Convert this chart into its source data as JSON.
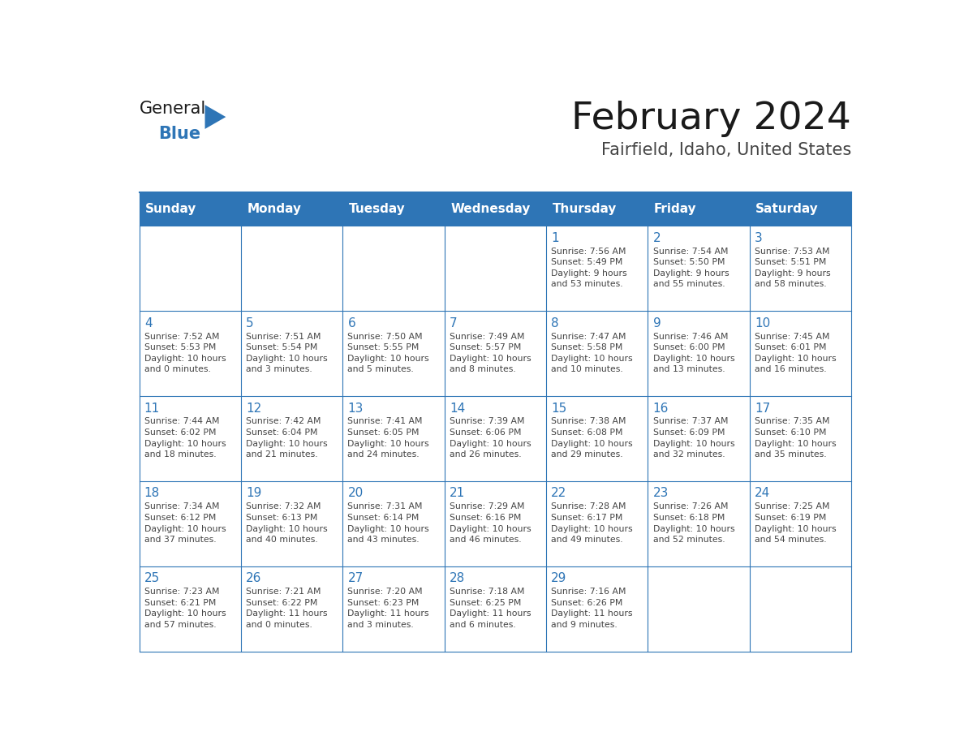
{
  "title": "February 2024",
  "subtitle": "Fairfield, Idaho, United States",
  "days_of_week": [
    "Sunday",
    "Monday",
    "Tuesday",
    "Wednesday",
    "Thursday",
    "Friday",
    "Saturday"
  ],
  "header_bg": "#2E75B6",
  "header_text": "#FFFFFF",
  "cell_bg": "#FFFFFF",
  "border_color": "#2E75B6",
  "title_color": "#1a1a1a",
  "subtitle_color": "#444444",
  "day_num_color": "#2E75B6",
  "cell_text_color": "#444444",
  "logo_general_color": "#1a1a1a",
  "logo_blue_color": "#2E75B6",
  "weeks": [
    [
      {
        "day": null,
        "info": null
      },
      {
        "day": null,
        "info": null
      },
      {
        "day": null,
        "info": null
      },
      {
        "day": null,
        "info": null
      },
      {
        "day": "1",
        "info": "Sunrise: 7:56 AM\nSunset: 5:49 PM\nDaylight: 9 hours\nand 53 minutes."
      },
      {
        "day": "2",
        "info": "Sunrise: 7:54 AM\nSunset: 5:50 PM\nDaylight: 9 hours\nand 55 minutes."
      },
      {
        "day": "3",
        "info": "Sunrise: 7:53 AM\nSunset: 5:51 PM\nDaylight: 9 hours\nand 58 minutes."
      }
    ],
    [
      {
        "day": "4",
        "info": "Sunrise: 7:52 AM\nSunset: 5:53 PM\nDaylight: 10 hours\nand 0 minutes."
      },
      {
        "day": "5",
        "info": "Sunrise: 7:51 AM\nSunset: 5:54 PM\nDaylight: 10 hours\nand 3 minutes."
      },
      {
        "day": "6",
        "info": "Sunrise: 7:50 AM\nSunset: 5:55 PM\nDaylight: 10 hours\nand 5 minutes."
      },
      {
        "day": "7",
        "info": "Sunrise: 7:49 AM\nSunset: 5:57 PM\nDaylight: 10 hours\nand 8 minutes."
      },
      {
        "day": "8",
        "info": "Sunrise: 7:47 AM\nSunset: 5:58 PM\nDaylight: 10 hours\nand 10 minutes."
      },
      {
        "day": "9",
        "info": "Sunrise: 7:46 AM\nSunset: 6:00 PM\nDaylight: 10 hours\nand 13 minutes."
      },
      {
        "day": "10",
        "info": "Sunrise: 7:45 AM\nSunset: 6:01 PM\nDaylight: 10 hours\nand 16 minutes."
      }
    ],
    [
      {
        "day": "11",
        "info": "Sunrise: 7:44 AM\nSunset: 6:02 PM\nDaylight: 10 hours\nand 18 minutes."
      },
      {
        "day": "12",
        "info": "Sunrise: 7:42 AM\nSunset: 6:04 PM\nDaylight: 10 hours\nand 21 minutes."
      },
      {
        "day": "13",
        "info": "Sunrise: 7:41 AM\nSunset: 6:05 PM\nDaylight: 10 hours\nand 24 minutes."
      },
      {
        "day": "14",
        "info": "Sunrise: 7:39 AM\nSunset: 6:06 PM\nDaylight: 10 hours\nand 26 minutes."
      },
      {
        "day": "15",
        "info": "Sunrise: 7:38 AM\nSunset: 6:08 PM\nDaylight: 10 hours\nand 29 minutes."
      },
      {
        "day": "16",
        "info": "Sunrise: 7:37 AM\nSunset: 6:09 PM\nDaylight: 10 hours\nand 32 minutes."
      },
      {
        "day": "17",
        "info": "Sunrise: 7:35 AM\nSunset: 6:10 PM\nDaylight: 10 hours\nand 35 minutes."
      }
    ],
    [
      {
        "day": "18",
        "info": "Sunrise: 7:34 AM\nSunset: 6:12 PM\nDaylight: 10 hours\nand 37 minutes."
      },
      {
        "day": "19",
        "info": "Sunrise: 7:32 AM\nSunset: 6:13 PM\nDaylight: 10 hours\nand 40 minutes."
      },
      {
        "day": "20",
        "info": "Sunrise: 7:31 AM\nSunset: 6:14 PM\nDaylight: 10 hours\nand 43 minutes."
      },
      {
        "day": "21",
        "info": "Sunrise: 7:29 AM\nSunset: 6:16 PM\nDaylight: 10 hours\nand 46 minutes."
      },
      {
        "day": "22",
        "info": "Sunrise: 7:28 AM\nSunset: 6:17 PM\nDaylight: 10 hours\nand 49 minutes."
      },
      {
        "day": "23",
        "info": "Sunrise: 7:26 AM\nSunset: 6:18 PM\nDaylight: 10 hours\nand 52 minutes."
      },
      {
        "day": "24",
        "info": "Sunrise: 7:25 AM\nSunset: 6:19 PM\nDaylight: 10 hours\nand 54 minutes."
      }
    ],
    [
      {
        "day": "25",
        "info": "Sunrise: 7:23 AM\nSunset: 6:21 PM\nDaylight: 10 hours\nand 57 minutes."
      },
      {
        "day": "26",
        "info": "Sunrise: 7:21 AM\nSunset: 6:22 PM\nDaylight: 11 hours\nand 0 minutes."
      },
      {
        "day": "27",
        "info": "Sunrise: 7:20 AM\nSunset: 6:23 PM\nDaylight: 11 hours\nand 3 minutes."
      },
      {
        "day": "28",
        "info": "Sunrise: 7:18 AM\nSunset: 6:25 PM\nDaylight: 11 hours\nand 6 minutes."
      },
      {
        "day": "29",
        "info": "Sunrise: 7:16 AM\nSunset: 6:26 PM\nDaylight: 11 hours\nand 9 minutes."
      },
      {
        "day": null,
        "info": null
      },
      {
        "day": null,
        "info": null
      }
    ]
  ],
  "fig_width": 11.88,
  "fig_height": 9.18,
  "dpi": 100
}
